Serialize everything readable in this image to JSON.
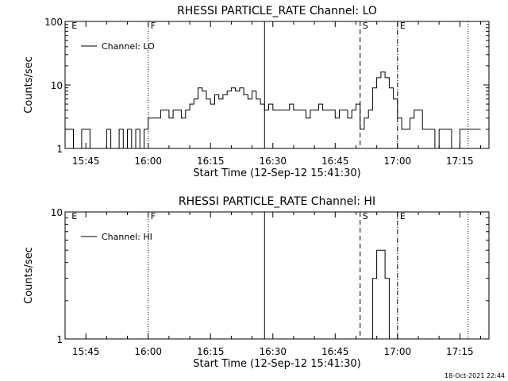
{
  "footer": {
    "timestamp": "18-Oct-2021 22:44"
  },
  "chart_data": [
    {
      "type": "line",
      "title": "RHESSI PARTICLE_RATE Channel: LO",
      "xlabel": "Start Time (12-Sep-12 15:41:30)",
      "ylabel": "Counts/sec",
      "y_scale": "log",
      "ylim": [
        1,
        100
      ],
      "y_ticks": [
        1,
        10,
        100
      ],
      "y_tick_labels": [
        "1",
        "10",
        "100"
      ],
      "x_range_minutes": [
        "15:40",
        "17:22"
      ],
      "x_ticks": [
        "15:45",
        "16:00",
        "16:15",
        "16:30",
        "16:45",
        "17:00",
        "17:15"
      ],
      "legend": {
        "label": "Channel: LO",
        "placement": "top-left"
      },
      "markers": [
        {
          "label": "E",
          "time": "15:41",
          "style": "none"
        },
        {
          "label": "F",
          "time": "16:00",
          "style": "dotted"
        },
        {
          "label": "",
          "time": "16:28",
          "style": "solid"
        },
        {
          "label": "S",
          "time": "16:51",
          "style": "dashed"
        },
        {
          "label": "E",
          "time": "17:00",
          "style": "dashdot"
        },
        {
          "label": "",
          "time": "17:17",
          "style": "dotted"
        }
      ],
      "series": [
        {
          "x": [
            "15:40",
            "15:41",
            "15:42",
            "15:43",
            "15:44",
            "15:45",
            "15:46",
            "15:47",
            "15:48",
            "15:49",
            "15:50",
            "15:51",
            "15:52",
            "15:53",
            "15:54",
            "15:55",
            "15:56",
            "15:57",
            "15:58",
            "15:59",
            "16:00",
            "16:01",
            "16:02",
            "16:03",
            "16:04",
            "16:05",
            "16:06",
            "16:07",
            "16:08",
            "16:09",
            "16:10",
            "16:11",
            "16:12",
            "16:13",
            "16:14",
            "16:15",
            "16:16",
            "16:17",
            "16:18",
            "16:19",
            "16:20",
            "16:21",
            "16:22",
            "16:23",
            "16:24",
            "16:25",
            "16:26",
            "16:27",
            "16:28",
            "16:29",
            "16:30",
            "16:31",
            "16:32",
            "16:33",
            "16:34",
            "16:35",
            "16:36",
            "16:37",
            "16:38",
            "16:39",
            "16:40",
            "16:41",
            "16:42",
            "16:43",
            "16:44",
            "16:45",
            "16:46",
            "16:47",
            "16:48",
            "16:49",
            "16:50",
            "16:51",
            "16:52",
            "16:53",
            "16:54",
            "16:55",
            "16:56",
            "16:57",
            "16:58",
            "16:59",
            "17:00",
            "17:01",
            "17:02",
            "17:03",
            "17:04",
            "17:05",
            "17:06",
            "17:07",
            "17:08",
            "17:09",
            "17:10",
            "17:11",
            "17:12",
            "17:13",
            "17:14",
            "17:15",
            "17:16",
            "17:17",
            "17:18",
            "17:19"
          ],
          "y": [
            2,
            2,
            1,
            1,
            2,
            2,
            1,
            1,
            1,
            1,
            2,
            1,
            1,
            2,
            1,
            2,
            1,
            2,
            1,
            2,
            3,
            3,
            3,
            4,
            4,
            3,
            4,
            4,
            3,
            4,
            5,
            6,
            9,
            8,
            6,
            5,
            7,
            6,
            7,
            8,
            9,
            8,
            9,
            7,
            6,
            8,
            6,
            5,
            4,
            5,
            4,
            4,
            4,
            4,
            5,
            4,
            4,
            4,
            3,
            4,
            4,
            5,
            4,
            4,
            4,
            3,
            4,
            4,
            3,
            4,
            5,
            2,
            3,
            4,
            9,
            13,
            16,
            13,
            9,
            6,
            3,
            2,
            2,
            3,
            4,
            4,
            2,
            2,
            2,
            1,
            2,
            2,
            2,
            1,
            1,
            2,
            2,
            2,
            2,
            2
          ]
        }
      ]
    },
    {
      "type": "line",
      "title": "RHESSI PARTICLE_RATE Channel: HI",
      "xlabel": "Start Time (12-Sep-12 15:41:30)",
      "ylabel": "Counts/sec",
      "y_scale": "log",
      "ylim": [
        1,
        10
      ],
      "y_ticks": [
        1,
        10
      ],
      "y_tick_labels": [
        "1",
        "10"
      ],
      "x_range_minutes": [
        "15:40",
        "17:22"
      ],
      "x_ticks": [
        "15:45",
        "16:00",
        "16:15",
        "16:30",
        "16:45",
        "17:00",
        "17:15"
      ],
      "legend": {
        "label": "Channel: HI",
        "placement": "top-left"
      },
      "markers": [
        {
          "label": "E",
          "time": "15:41",
          "style": "none"
        },
        {
          "label": "F",
          "time": "16:00",
          "style": "dotted"
        },
        {
          "label": "",
          "time": "16:28",
          "style": "solid"
        },
        {
          "label": "S",
          "time": "16:51",
          "style": "dashed"
        },
        {
          "label": "E",
          "time": "17:00",
          "style": "dashdot"
        },
        {
          "label": "",
          "time": "17:17",
          "style": "dotted"
        }
      ],
      "series": [
        {
          "x": [
            "16:53",
            "16:54",
            "16:55",
            "16:56",
            "16:57",
            "16:58"
          ],
          "y": [
            1,
            3,
            5,
            5,
            3,
            1
          ]
        }
      ]
    }
  ]
}
